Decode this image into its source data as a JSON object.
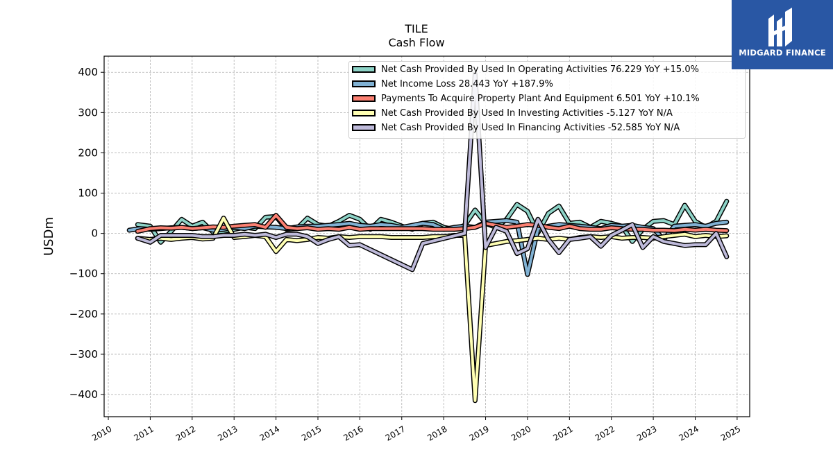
{
  "header": {
    "ticker": "TILE",
    "subtitle": "Cash Flow"
  },
  "logo": {
    "text": "MIDGARD FINANCE",
    "bg_color": "#2957a4"
  },
  "chart_data": {
    "type": "line",
    "title": "TILE",
    "subtitle": "Cash Flow",
    "xlabel": "",
    "ylabel": "USDm",
    "xlim": [
      2009.9,
      2025.3
    ],
    "ylim": [
      -455,
      440
    ],
    "x_ticks": [
      "2010",
      "2011",
      "2012",
      "2013",
      "2014",
      "2015",
      "2016",
      "2017",
      "2018",
      "2019",
      "2020",
      "2021",
      "2022",
      "2023",
      "2024",
      "2025"
    ],
    "y_ticks": [
      "400",
      "300",
      "200",
      "100",
      "0",
      "−100",
      "−200",
      "−300",
      "−400"
    ],
    "y_tick_values": [
      400,
      300,
      200,
      100,
      0,
      -100,
      -200,
      -300,
      -400
    ],
    "grid": true,
    "legend_position": "top-right",
    "series": [
      {
        "name": "Net Cash Provided By Used In Operating Activities",
        "legend_label": "Net Cash Provided By Used In Operating Activities  76.229 YoY +15.0%",
        "color": "#8dd3c7",
        "x": [
          2010.7,
          2011.0,
          2011.25,
          2011.5,
          2011.75,
          2012.0,
          2012.25,
          2012.5,
          2012.75,
          2013.0,
          2013.25,
          2013.5,
          2013.75,
          2014.0,
          2014.25,
          2014.5,
          2014.75,
          2015.0,
          2015.25,
          2015.5,
          2015.75,
          2016.0,
          2016.25,
          2016.5,
          2016.75,
          2017.0,
          2017.25,
          2017.5,
          2017.75,
          2018.0,
          2018.25,
          2018.5,
          2018.75,
          2019.0,
          2019.25,
          2019.5,
          2019.75,
          2020.0,
          2020.25,
          2020.5,
          2020.75,
          2021.0,
          2021.25,
          2021.5,
          2021.75,
          2022.0,
          2022.25,
          2022.5,
          2022.75,
          2023.0,
          2023.25,
          2023.5,
          2023.75,
          2024.0,
          2024.25,
          2024.5,
          2024.75
        ],
        "values": [
          22,
          18,
          -22,
          5,
          35,
          18,
          28,
          3,
          5,
          10,
          15,
          12,
          40,
          42,
          10,
          12,
          38,
          22,
          18,
          30,
          45,
          35,
          10,
          35,
          28,
          18,
          10,
          25,
          28,
          15,
          10,
          20,
          58,
          25,
          15,
          35,
          72,
          55,
          2,
          50,
          68,
          25,
          28,
          15,
          30,
          25,
          18,
          -20,
          10,
          30,
          32,
          22,
          70,
          30,
          15,
          30,
          80
        ]
      },
      {
        "name": "Net Income Loss",
        "legend_label": "Net Income Loss  28.443 YoY +187.9%",
        "color": "#80b1d3",
        "x": [
          2010.5,
          2010.75,
          2011.0,
          2011.25,
          2011.5,
          2011.75,
          2012.0,
          2012.25,
          2012.5,
          2012.75,
          2013.0,
          2013.25,
          2013.5,
          2013.75,
          2014.0,
          2014.25,
          2014.5,
          2014.75,
          2015.0,
          2015.25,
          2015.5,
          2015.75,
          2016.0,
          2016.25,
          2016.5,
          2016.75,
          2017.0,
          2017.25,
          2017.5,
          2017.75,
          2018.0,
          2018.25,
          2018.5,
          2018.75,
          2019.0,
          2019.25,
          2019.5,
          2019.75,
          2020.0,
          2020.25,
          2020.5,
          2020.75,
          2021.0,
          2021.25,
          2021.5,
          2021.75,
          2022.0,
          2022.25,
          2022.5,
          2022.75,
          2023.0,
          2023.25,
          2023.5,
          2023.75,
          2024.0,
          2024.25,
          2024.5,
          2024.75
        ],
        "values": [
          8,
          12,
          10,
          12,
          14,
          15,
          12,
          14,
          8,
          10,
          15,
          12,
          18,
          16,
          15,
          12,
          16,
          18,
          18,
          20,
          22,
          25,
          20,
          18,
          22,
          20,
          15,
          20,
          25,
          22,
          10,
          15,
          18,
          15,
          28,
          30,
          32,
          28,
          -102,
          12,
          18,
          22,
          20,
          18,
          15,
          12,
          20,
          18,
          20,
          15,
          12,
          -15,
          18,
          20,
          22,
          18,
          25,
          28
        ]
      },
      {
        "name": "Payments To Acquire Property Plant And Equipment",
        "legend_label": "Payments To Acquire Property Plant And Equipment  6.501 YoY +10.1%",
        "color": "#fb8072",
        "x": [
          2010.7,
          2011.0,
          2011.25,
          2011.5,
          2011.75,
          2012.0,
          2012.25,
          2012.5,
          2012.75,
          2013.0,
          2013.25,
          2013.5,
          2013.75,
          2014.0,
          2014.25,
          2014.5,
          2014.75,
          2015.0,
          2015.25,
          2015.5,
          2015.75,
          2016.0,
          2016.25,
          2016.5,
          2016.75,
          2017.0,
          2017.25,
          2017.5,
          2017.75,
          2018.0,
          2018.25,
          2018.5,
          2018.75,
          2019.0,
          2019.25,
          2019.5,
          2019.75,
          2020.0,
          2020.25,
          2020.5,
          2020.75,
          2021.0,
          2021.25,
          2021.5,
          2021.75,
          2022.0,
          2022.25,
          2022.5,
          2022.75,
          2023.0,
          2023.25,
          2023.5,
          2023.75,
          2024.0,
          2024.25,
          2024.5,
          2024.75
        ],
        "values": [
          5,
          12,
          14,
          13,
          15,
          12,
          14,
          16,
          15,
          18,
          20,
          22,
          15,
          45,
          15,
          12,
          14,
          10,
          12,
          10,
          15,
          10,
          12,
          12,
          12,
          12,
          12,
          12,
          10,
          10,
          10,
          12,
          15,
          25,
          20,
          15,
          18,
          22,
          20,
          15,
          12,
          18,
          12,
          10,
          10,
          14,
          12,
          10,
          10,
          8,
          8,
          7,
          10,
          8,
          10,
          8,
          7
        ]
      },
      {
        "name": "Net Cash Provided By Used In Investing Activities",
        "legend_label": "Net Cash Provided By Used In Investing Activities  -5.127 YoY N/A",
        "color": "#ffffb3",
        "x": [
          2010.7,
          2011.0,
          2011.25,
          2011.5,
          2011.75,
          2012.0,
          2012.25,
          2012.5,
          2012.75,
          2013.0,
          2013.25,
          2013.5,
          2013.75,
          2014.0,
          2014.25,
          2014.5,
          2014.75,
          2015.0,
          2015.25,
          2015.5,
          2015.75,
          2016.0,
          2016.25,
          2016.5,
          2016.75,
          2017.0,
          2017.25,
          2017.5,
          2017.75,
          2018.0,
          2018.25,
          2018.5,
          2018.75,
          2019.0,
          2019.25,
          2019.5,
          2019.75,
          2020.0,
          2020.25,
          2020.5,
          2020.75,
          2021.0,
          2021.25,
          2021.5,
          2021.75,
          2022.0,
          2022.25,
          2022.5,
          2022.75,
          2023.0,
          2023.25,
          2023.5,
          2023.75,
          2024.0,
          2024.25,
          2024.5,
          2024.75
        ],
        "values": [
          -12,
          -15,
          -12,
          -15,
          -12,
          -10,
          -14,
          -12,
          38,
          -10,
          -8,
          -5,
          -8,
          -45,
          -15,
          -18,
          -15,
          -10,
          -12,
          -8,
          -10,
          -8,
          -8,
          -8,
          -10,
          -10,
          -10,
          -10,
          -8,
          -8,
          -5,
          -5,
          -415,
          -30,
          -25,
          -20,
          -18,
          -15,
          -12,
          -15,
          -12,
          -15,
          -10,
          -8,
          -10,
          -8,
          -12,
          -10,
          -10,
          -12,
          -8,
          -5,
          -2,
          -8,
          -5,
          -8,
          -6
        ]
      },
      {
        "name": "Net Cash Provided By Used In Financing Activities",
        "legend_label": "Net Cash Provided By Used In Financing Activities  -52.585 YoY N/A",
        "color": "#bebada",
        "x": [
          2010.7,
          2011.0,
          2011.25,
          2011.5,
          2011.75,
          2012.0,
          2012.25,
          2012.5,
          2012.75,
          2013.0,
          2013.25,
          2013.5,
          2013.75,
          2014.0,
          2014.25,
          2014.5,
          2014.75,
          2015.0,
          2015.25,
          2015.5,
          2015.75,
          2016.0,
          2017.25,
          2017.5,
          2018.5,
          2018.75,
          2019.0,
          2019.25,
          2019.5,
          2019.75,
          2020.0,
          2020.25,
          2020.5,
          2020.75,
          2021.0,
          2021.25,
          2021.5,
          2021.75,
          2022.0,
          2022.25,
          2022.5,
          2022.75,
          2023.0,
          2023.25,
          2023.5,
          2023.75,
          2024.0,
          2024.25,
          2024.5,
          2024.75
        ],
        "values": [
          -12,
          -22,
          -5,
          -5,
          -5,
          -5,
          -8,
          -8,
          -5,
          -5,
          -2,
          -5,
          -2,
          -10,
          -2,
          -2,
          -8,
          -25,
          -15,
          -8,
          -30,
          -28,
          -90,
          -25,
          0,
          395,
          -35,
          15,
          5,
          -50,
          -38,
          35,
          -15,
          -48,
          -15,
          -12,
          -8,
          -32,
          -5,
          8,
          22,
          -35,
          -8,
          -20,
          -25,
          -30,
          -28,
          -28,
          0,
          -58
        ]
      }
    ]
  }
}
